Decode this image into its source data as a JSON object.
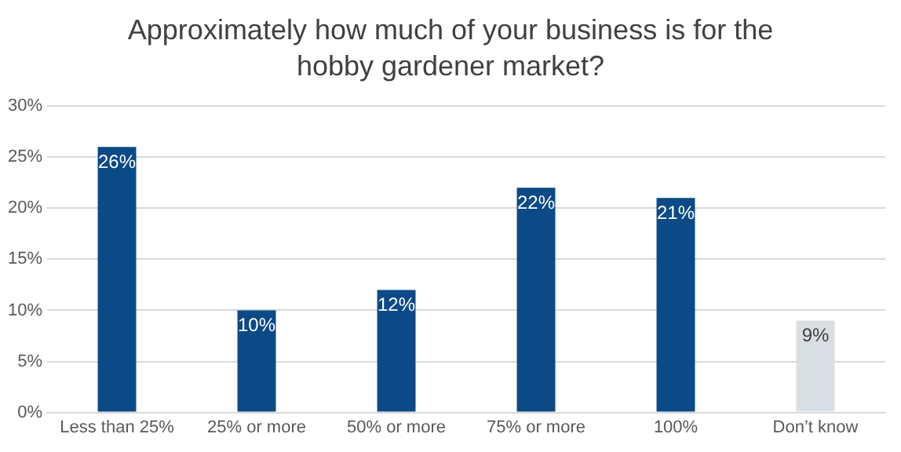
{
  "chart_data": {
    "type": "bar",
    "title": "Approximately how much of your business is for the hobby gardener market?",
    "categories": [
      "Less than 25%",
      "25% or more",
      "50% or more",
      "75% or more",
      "100%",
      "Don’t know"
    ],
    "values": [
      26,
      10,
      12,
      22,
      21,
      9
    ],
    "colors": [
      "#0b4a86",
      "#0b4a86",
      "#0b4a86",
      "#0b4a86",
      "#0b4a86",
      "#d9dee2"
    ],
    "value_labels": [
      "26%",
      "10%",
      "12%",
      "22%",
      "21%",
      "9%"
    ],
    "ylim": [
      0,
      30
    ],
    "yticks": [
      {
        "value": 0,
        "label": "0%"
      },
      {
        "value": 5,
        "label": "5%"
      },
      {
        "value": 10,
        "label": "10%"
      },
      {
        "value": 15,
        "label": "15%"
      },
      {
        "value": 20,
        "label": "20%"
      },
      {
        "value": 25,
        "label": "25%"
      },
      {
        "value": 30,
        "label": "30%"
      }
    ],
    "grid": "y",
    "legend": false
  }
}
